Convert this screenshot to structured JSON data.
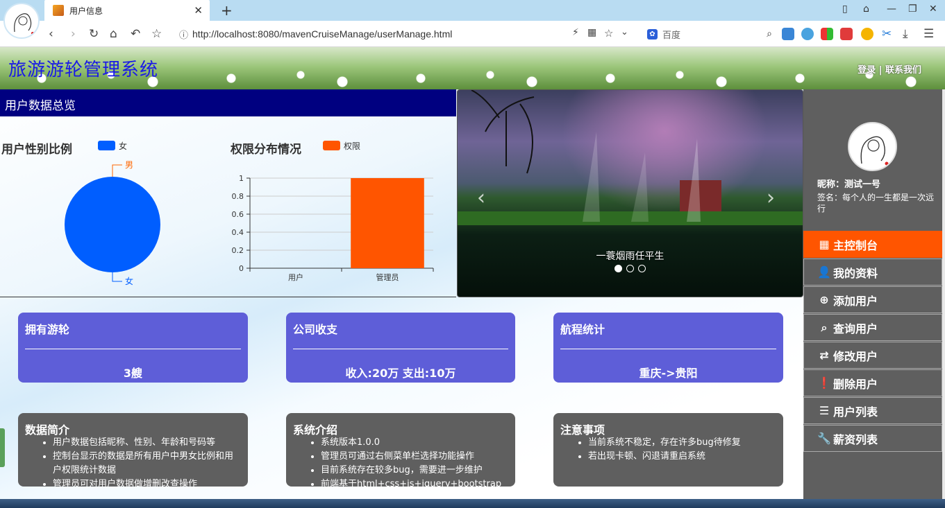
{
  "browser": {
    "tab_title": "用户信息",
    "url": "http://localhost:8080/mavenCruiseManage/userManage.html",
    "search_placeholder": "百度"
  },
  "header": {
    "site_title": "旅游游轮管理系统",
    "links": "登录 | 联系我们"
  },
  "overview": {
    "bar_title": "用户数据总览"
  },
  "chart_data": [
    {
      "type": "pie",
      "title": "用户性别比例",
      "legend": [
        "女"
      ],
      "labels": [
        "男",
        "女"
      ],
      "values": [
        0,
        1
      ],
      "colors": [
        "#ff6600",
        "#005eff"
      ]
    },
    {
      "type": "bar",
      "title": "权限分布情况",
      "legend": [
        "权限"
      ],
      "categories": [
        "用户",
        "管理员"
      ],
      "values": [
        0,
        1
      ],
      "ylim": [
        0,
        1
      ],
      "yticks": [
        "0",
        "0.2",
        "0.4",
        "0.6",
        "0.8",
        "1"
      ],
      "color": "#ff5500"
    }
  ],
  "carousel": {
    "caption": "一蓑烟雨任平生",
    "slide_count": 3,
    "active_index": 0
  },
  "stats": [
    {
      "label": "拥有游轮",
      "value": "3艘"
    },
    {
      "label": "公司收支",
      "value": "收入:20万 支出:10万"
    },
    {
      "label": "航程统计",
      "value": "重庆->贵阳"
    }
  ],
  "info": [
    {
      "label": "数据简介",
      "items": [
        "用户数据包括昵称、性别、年龄和号码等",
        "控制台显示的数据是所有用户中男女比例和用户权限统计数据",
        "管理员可对用户数据做增删改查操作"
      ]
    },
    {
      "label": "系统介绍",
      "items": [
        "系统版本1.0.0",
        "管理员可通过右侧菜单栏选择功能操作",
        "目前系统存在较多bug，需要进一步维护",
        "前端基于html+css+js+jquery+bootstrap开发"
      ]
    },
    {
      "label": "注意事项",
      "items": [
        "当前系统不稳定，存在许多bug待修复",
        "若出现卡顿、闪退请重启系统"
      ]
    }
  ],
  "profile": {
    "nickname": "昵称：测试一号",
    "signature": "签名：每个人的一生都是一次远行"
  },
  "menu": [
    {
      "label": "主控制台",
      "icon": "grid-icon"
    },
    {
      "label": "我的资料",
      "icon": "user-icon"
    },
    {
      "label": "添加用户",
      "icon": "plus-circle-icon"
    },
    {
      "label": "查询用户",
      "icon": "search-icon"
    },
    {
      "label": "修改用户",
      "icon": "retweet-icon"
    },
    {
      "label": "删除用户",
      "icon": "exclamation-circle-icon"
    },
    {
      "label": "用户列表",
      "icon": "list-icon"
    },
    {
      "label": "薪资列表",
      "icon": "wrench-icon"
    }
  ],
  "colors": {
    "header_bar": "#000080",
    "accent": "#ff5500",
    "card_blue": "#5e5ed8",
    "card_gray": "#5f5f5f",
    "pie_blue": "#005eff"
  }
}
